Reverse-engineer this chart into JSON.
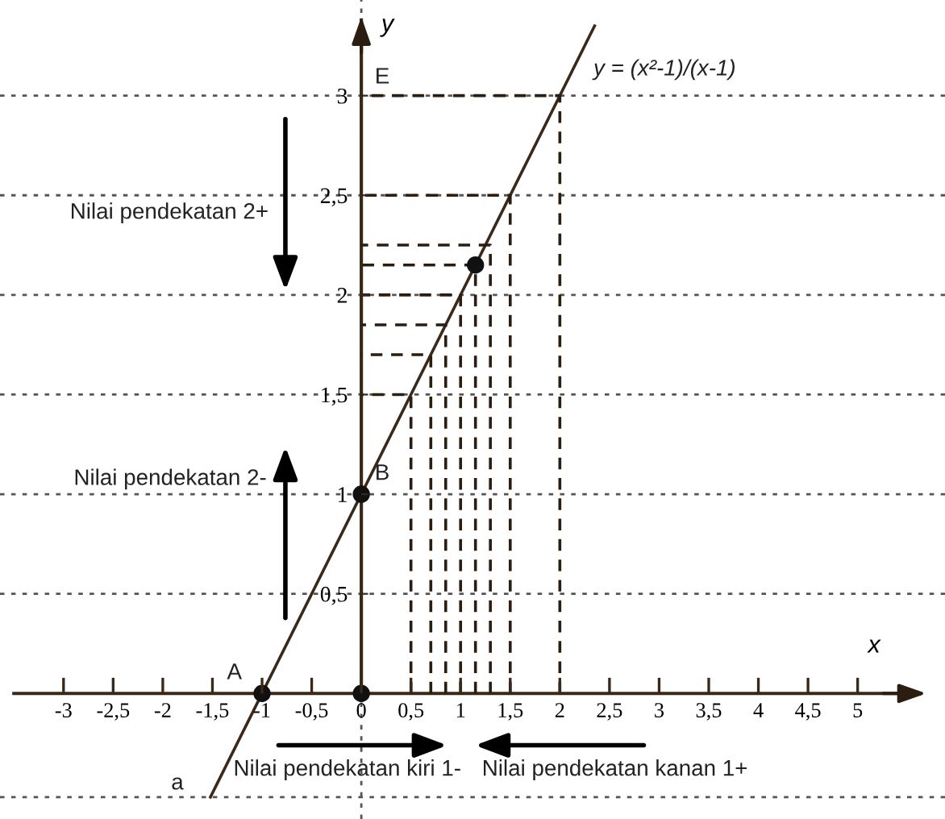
{
  "chart_data": {
    "type": "line",
    "xlabel": "x",
    "ylabel": "y",
    "xlim": [
      -3.64,
      5.88
    ],
    "ylim": [
      -0.63,
      3.48
    ],
    "xticks": [
      {
        "value": -3,
        "label": "-3"
      },
      {
        "value": -2.5,
        "label": "-2,5"
      },
      {
        "value": -2,
        "label": "-2"
      },
      {
        "value": -1.5,
        "label": "-1,5"
      },
      {
        "value": -1,
        "label": "-1"
      },
      {
        "value": -0.5,
        "label": "-0,5"
      },
      {
        "value": 0,
        "label": "0"
      },
      {
        "value": 0.5,
        "label": "0,5"
      },
      {
        "value": 1,
        "label": "1"
      },
      {
        "value": 1.5,
        "label": "1,5"
      },
      {
        "value": 2,
        "label": "2"
      },
      {
        "value": 2.5,
        "label": "2,5"
      },
      {
        "value": 3,
        "label": "3"
      },
      {
        "value": 3.5,
        "label": "3,5"
      },
      {
        "value": 4,
        "label": "4"
      },
      {
        "value": 4.5,
        "label": "4,5"
      },
      {
        "value": 5,
        "label": "5"
      }
    ],
    "yticks": [
      {
        "value": 0.5,
        "label": "0,5"
      },
      1,
      {
        "value": 1.5,
        "label": "1,5"
      },
      2,
      {
        "value": 2.5,
        "label": "2,5"
      },
      3
    ],
    "grid": false,
    "series": [
      {
        "x": [
          -1.52,
          2.35
        ],
        "values": [
          -0.52,
          3.35
        ],
        "color": "#3a2818",
        "line_style": "solid"
      },
      {
        "type": "line",
        "x": [
          0.5,
          0.5,
          0
        ],
        "values": [
          0,
          1.5,
          1.5
        ],
        "color": "#2b1d10",
        "line_style": "dashed"
      },
      {
        "type": "line",
        "x": [
          0.7,
          0.7,
          0
        ],
        "values": [
          0,
          1.7,
          1.7
        ],
        "color": "#2b1d10",
        "line_style": "dashed"
      },
      {
        "type": "line",
        "x": [
          0.85,
          0.85,
          0
        ],
        "values": [
          0,
          1.85,
          1.85
        ],
        "color": "#2b1d10",
        "line_style": "dashed"
      },
      {
        "type": "line",
        "x": [
          1,
          1,
          0
        ],
        "values": [
          0,
          2,
          2
        ],
        "color": "#2b1d10",
        "line_style": "dashed"
      },
      {
        "type": "line",
        "x": [
          1.15,
          1.15,
          0
        ],
        "values": [
          0,
          2.15,
          2.15
        ],
        "color": "#2b1d10",
        "line_style": "dashed"
      },
      {
        "type": "line",
        "x": [
          1.3,
          1.3,
          0
        ],
        "values": [
          0,
          2.25,
          2.25
        ],
        "color": "#2b1d10",
        "line_style": "dashed"
      },
      {
        "type": "line",
        "x": [
          1.5,
          1.5,
          0
        ],
        "values": [
          0,
          2.5,
          2.5
        ],
        "color": "#2b1d10",
        "line_style": "dashed"
      },
      {
        "type": "line",
        "x": [
          2,
          2,
          0
        ],
        "values": [
          0,
          3,
          3
        ],
        "color": "#2b1d10",
        "line_style": "dashed"
      },
      {
        "type": "scatter",
        "x": [
          -1,
          0,
          0,
          1.15
        ],
        "values": [
          0,
          0,
          1,
          2.15
        ],
        "color": "#111111",
        "marker": "circle"
      }
    ],
    "ref_lines": [
      {
        "axis": "y",
        "value": 3,
        "color": "#555555",
        "line_style": "dotted"
      },
      {
        "axis": "y",
        "value": 2.5,
        "color": "#555555",
        "line_style": "dotted"
      },
      {
        "axis": "y",
        "value": 2,
        "color": "#555555",
        "line_style": "dotted"
      },
      {
        "axis": "y",
        "value": 1.5,
        "color": "#555555",
        "line_style": "dotted"
      },
      {
        "axis": "y",
        "value": 1,
        "color": "#555555",
        "line_style": "dotted"
      },
      {
        "axis": "y",
        "value": 0.5,
        "color": "#555555",
        "line_style": "dotted"
      },
      {
        "axis": "y",
        "value": -0.52,
        "color": "#555555",
        "line_style": "dotted"
      },
      {
        "axis": "x",
        "value": 0,
        "color": "#555555",
        "line_style": "dotted"
      }
    ],
    "annotations": [
      "y = (x²-1)/(x-1)",
      {
        "text": "A",
        "x": -1,
        "y": 0
      },
      {
        "text": "B",
        "x": 0,
        "y": 1
      },
      {
        "text": "E",
        "x": 0,
        "y": 3
      },
      {
        "text": "a",
        "x": -1.52,
        "y": -0.52
      },
      "Nilai pendekatan 2+",
      "Nilai pendekatan 2-",
      "Nilai pendekatan kiri 1-",
      "Nilai pendekatan kanan 1+"
    ]
  }
}
